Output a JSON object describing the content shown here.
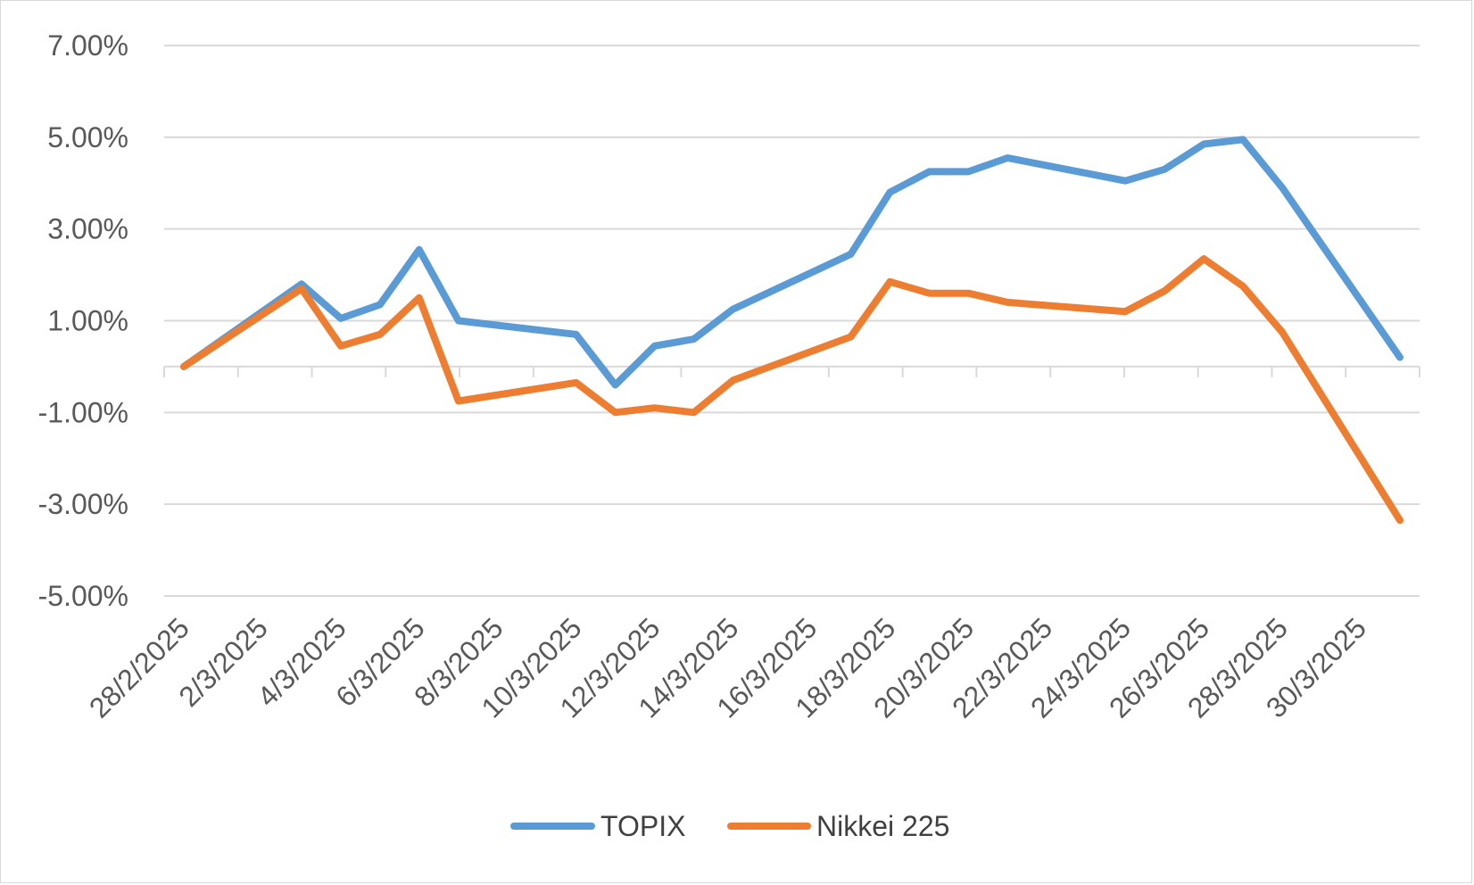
{
  "chart_data": {
    "type": "line",
    "title": "",
    "xlabel": "",
    "ylabel": "",
    "ylim": [
      -0.05,
      0.07
    ],
    "y_ticks": [
      "7.00%",
      "5.00%",
      "3.00%",
      "1.00%",
      "-1.00%",
      "-3.00%",
      "-5.00%"
    ],
    "y_tick_values": [
      0.07,
      0.05,
      0.03,
      0.01,
      -0.01,
      -0.03,
      -0.05
    ],
    "x_start": "28/2/2025",
    "x_end": "31/3/2025",
    "x_tick_labels": [
      "28/2/2025",
      "2/3/2025",
      "4/3/2025",
      "6/3/2025",
      "8/3/2025",
      "10/3/2025",
      "12/3/2025",
      "14/3/2025",
      "16/3/2025",
      "18/3/2025",
      "20/3/2025",
      "22/3/2025",
      "24/3/2025",
      "26/3/2025",
      "28/3/2025",
      "30/3/2025"
    ],
    "grid": true,
    "legend_position": "bottom",
    "series": [
      {
        "name": "TOPIX",
        "color": "#5b9bd5",
        "dates": [
          "28/2/2025",
          "3/3/2025",
          "4/3/2025",
          "5/3/2025",
          "6/3/2025",
          "7/3/2025",
          "10/3/2025",
          "11/3/2025",
          "12/3/2025",
          "13/3/2025",
          "14/3/2025",
          "17/3/2025",
          "18/3/2025",
          "19/3/2025",
          "20/3/2025",
          "21/3/2025",
          "24/3/2025",
          "25/3/2025",
          "26/3/2025",
          "27/3/2025",
          "28/3/2025",
          "31/3/2025"
        ],
        "values": [
          0.0,
          0.018,
          0.0105,
          0.0135,
          0.0255,
          0.01,
          0.007,
          -0.004,
          0.0045,
          0.006,
          0.0125,
          0.0245,
          0.038,
          0.0425,
          0.0425,
          0.0455,
          0.0405,
          0.043,
          0.0485,
          0.0495,
          0.039,
          0.002
        ]
      },
      {
        "name": "Nikkei 225",
        "color": "#ed7d31",
        "dates": [
          "28/2/2025",
          "3/3/2025",
          "4/3/2025",
          "5/3/2025",
          "6/3/2025",
          "7/3/2025",
          "10/3/2025",
          "11/3/2025",
          "12/3/2025",
          "13/3/2025",
          "14/3/2025",
          "17/3/2025",
          "18/3/2025",
          "19/3/2025",
          "20/3/2025",
          "21/3/2025",
          "24/3/2025",
          "25/3/2025",
          "26/3/2025",
          "27/3/2025",
          "28/3/2025",
          "31/3/2025"
        ],
        "values": [
          0.0,
          0.017,
          0.0045,
          0.007,
          0.015,
          -0.0075,
          -0.0035,
          -0.01,
          -0.009,
          -0.01,
          -0.003,
          0.0065,
          0.0185,
          0.016,
          0.016,
          0.014,
          0.012,
          0.0165,
          0.0235,
          0.0175,
          0.0075,
          -0.0335
        ]
      }
    ]
  }
}
